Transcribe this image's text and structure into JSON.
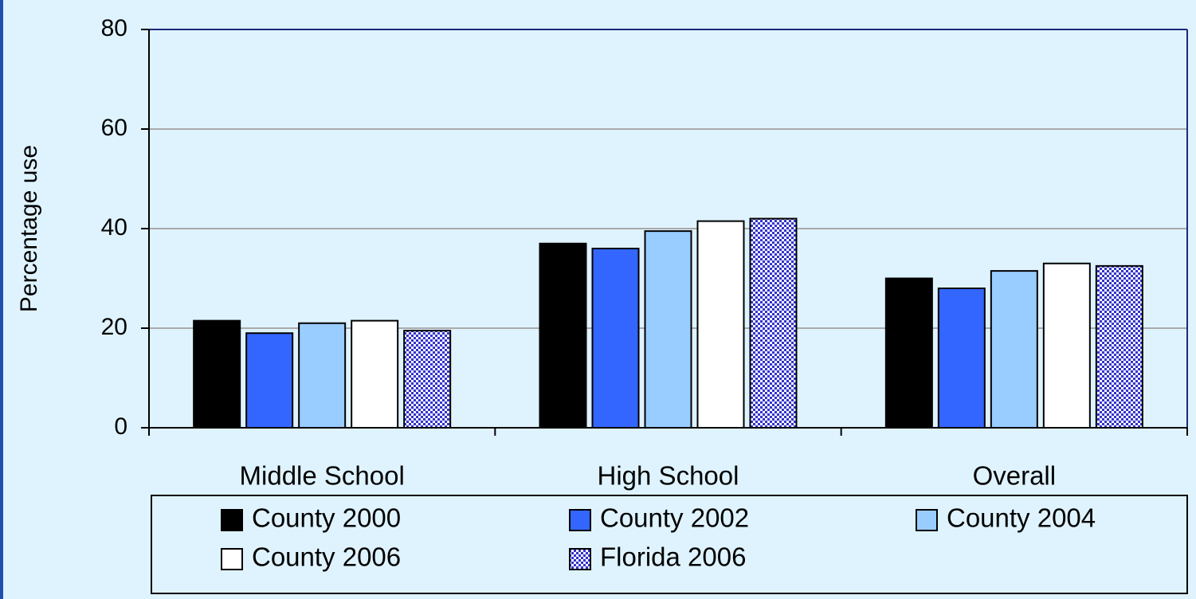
{
  "chart_data": {
    "type": "bar",
    "ylabel": "Percentage use",
    "categories": [
      "Middle School",
      "High School",
      "Overall"
    ],
    "series": [
      {
        "name": "County 2000",
        "color": "#000000",
        "values": [
          21.5,
          37,
          30
        ]
      },
      {
        "name": "County 2002",
        "color": "#3366ff",
        "values": [
          19,
          36,
          28
        ]
      },
      {
        "name": "County 2004",
        "color": "#99ccff",
        "values": [
          21,
          39.5,
          31.5
        ]
      },
      {
        "name": "County 2006",
        "color": "#ffffff",
        "values": [
          21.5,
          41.5,
          33
        ]
      },
      {
        "name": "Florida 2006",
        "color": "#3333cc",
        "pattern": "checker",
        "values": [
          19.5,
          42,
          32.5
        ]
      }
    ],
    "ylim": [
      0,
      80
    ],
    "yticks": [
      0,
      20,
      40,
      60,
      80
    ],
    "grid": true,
    "legend": "bottom"
  }
}
